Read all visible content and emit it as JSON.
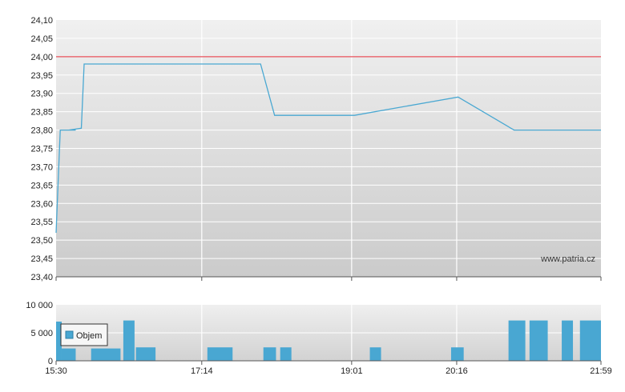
{
  "watermark": "www.patria.cz",
  "colors": {
    "line": "#4aa8d2",
    "reference": "#e8505a",
    "bar": "#49a7d2",
    "bar_stroke": "#2d7fa6"
  },
  "chart_data": [
    {
      "type": "line",
      "x_tick_labels": [
        "15:30",
        "17:14",
        "19:01",
        "20:16",
        "21:59"
      ],
      "y_tick_labels": [
        "24,10",
        "24,05",
        "24,00",
        "23,95",
        "23,90",
        "23,85",
        "23,80",
        "23,75",
        "23,70",
        "23,65",
        "23,60",
        "23,55",
        "23,50",
        "23,45",
        "23,40"
      ],
      "ylim": [
        23.4,
        24.1
      ],
      "xlim_minutes": [
        930,
        1319
      ],
      "reference_line": 24.0,
      "series": [
        {
          "x": [
            "15:30",
            "15:33",
            "15:44",
            "15:39",
            "15:48",
            "15:50",
            "17:56",
            "18:06",
            "19:03",
            "20:17",
            "20:57",
            "21:59"
          ],
          "y": [
            23.52,
            23.8,
            23.8,
            23.8,
            23.805,
            23.98,
            23.98,
            23.84,
            23.84,
            23.89,
            23.8,
            23.8
          ]
        }
      ],
      "grid": true
    },
    {
      "type": "bar",
      "y_tick_labels": [
        "10 000",
        "5 000",
        "0"
      ],
      "ylim": [
        0,
        10000
      ],
      "legend": {
        "label": "Objem",
        "position": "top-left"
      },
      "series": [
        {
          "name": "Objem",
          "bars": [
            {
              "start": "15:30",
              "end": "15:34",
              "value": 7000
            },
            {
              "start": "15:34",
              "end": "15:44",
              "value": 2200
            },
            {
              "start": "15:55",
              "end": "16:16",
              "value": 2200
            },
            {
              "start": "16:18",
              "end": "16:26",
              "value": 7200
            },
            {
              "start": "16:27",
              "end": "16:41",
              "value": 2400
            },
            {
              "start": "17:18",
              "end": "17:36",
              "value": 2400
            },
            {
              "start": "17:58",
              "end": "18:07",
              "value": 2400
            },
            {
              "start": "18:10",
              "end": "18:18",
              "value": 2400
            },
            {
              "start": "19:14",
              "end": "19:22",
              "value": 2400
            },
            {
              "start": "20:12",
              "end": "20:21",
              "value": 2400
            },
            {
              "start": "20:53",
              "end": "21:05",
              "value": 7200
            },
            {
              "start": "21:08",
              "end": "21:21",
              "value": 7200
            },
            {
              "start": "21:31",
              "end": "21:39",
              "value": 7200
            },
            {
              "start": "21:44",
              "end": "21:59",
              "value": 7200
            }
          ]
        }
      ]
    }
  ]
}
